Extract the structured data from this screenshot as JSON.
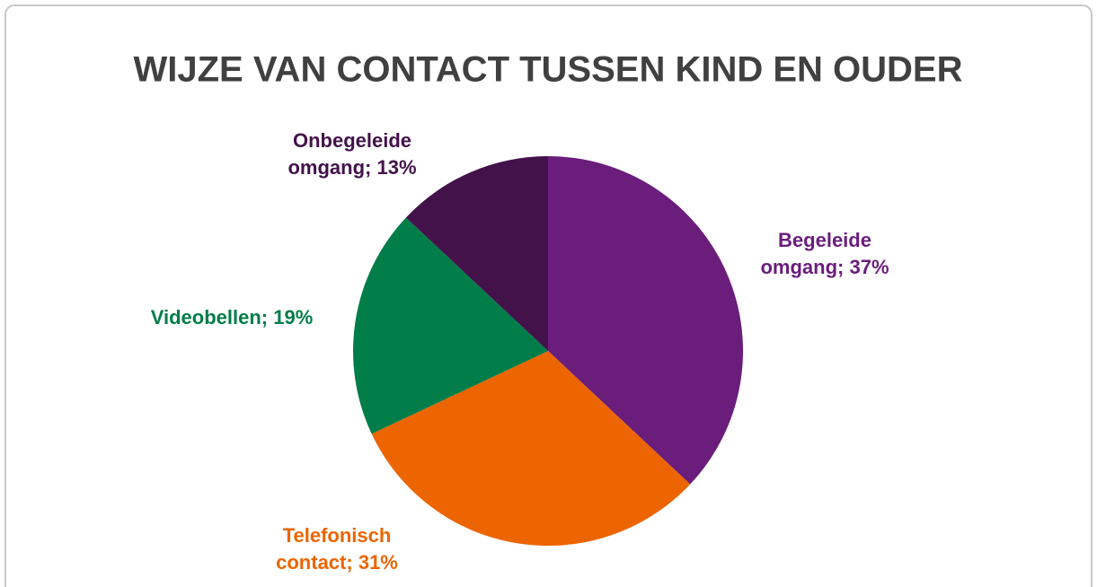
{
  "chart_data": {
    "type": "pie",
    "title": "WIJZE VAN CONTACT TUSSEN KIND EN OUDER",
    "categories": [
      "Begeleide omgang",
      "Telefonisch contact",
      "Videobellen",
      "Onbegeleide omgang"
    ],
    "values": [
      37,
      31,
      19,
      13
    ],
    "value_labels": [
      "37%",
      "31%",
      "19%",
      "13%"
    ],
    "label_separator": "; ",
    "colors": [
      "#6b1d7c",
      "#ec6500",
      "#007d48",
      "#43124b"
    ]
  }
}
